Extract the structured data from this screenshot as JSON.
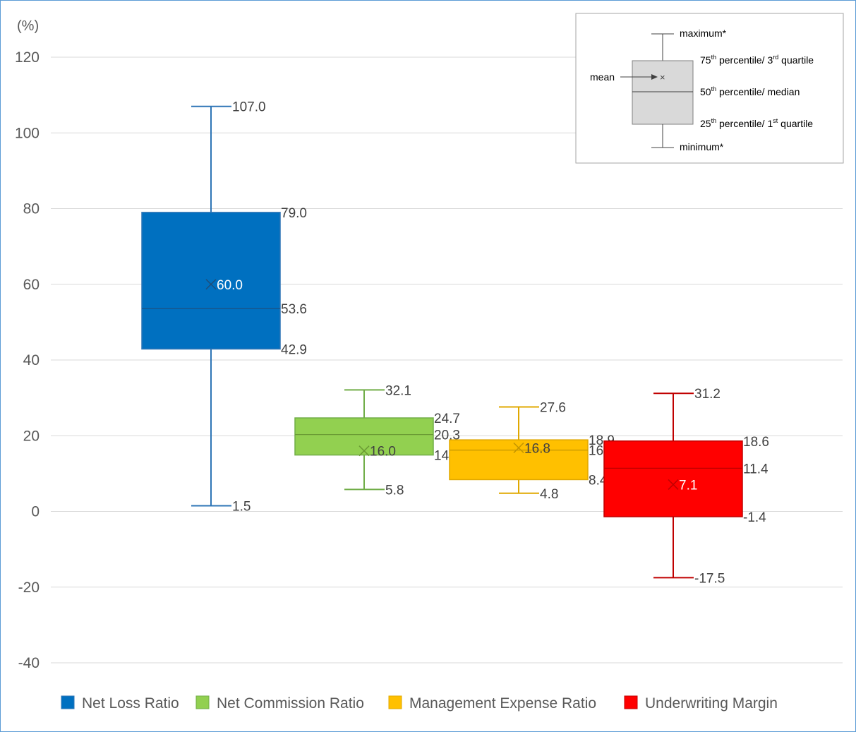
{
  "chart_data": {
    "type": "box",
    "unit_label": "(%)",
    "ylim": [
      -40,
      120
    ],
    "yticks": [
      -40,
      -20,
      0,
      20,
      40,
      60,
      80,
      100,
      120
    ],
    "grid": true,
    "legend_position": "bottom",
    "series": [
      {
        "name": "Net Loss Ratio",
        "color": "#0070c0",
        "min": 1.5,
        "q1": 42.9,
        "median": 53.6,
        "q3": 79.0,
        "max": 107.0,
        "mean": 60.0,
        "labels": {
          "max": "107.0",
          "q3": "79.0",
          "median": "53.6",
          "q1": "42.9",
          "min": "1.5",
          "mean": "60.0"
        }
      },
      {
        "name": "Net Commission Ratio",
        "color": "#92d050",
        "min": 5.8,
        "q1": 14.9,
        "median": 20.3,
        "q3": 24.7,
        "max": 32.1,
        "mean": 16.0,
        "labels": {
          "max": "32.1",
          "q3": "24.7",
          "median": "20.3",
          "q1": "14.9",
          "min": "5.8",
          "mean": "16.0"
        }
      },
      {
        "name": "Management Expense Ratio",
        "color": "#ffc000",
        "min": 4.8,
        "q1": 8.4,
        "median": 16.2,
        "q3": 18.9,
        "max": 27.6,
        "mean": 16.8,
        "labels": {
          "max": "27.6",
          "q3": "18.9",
          "median": "16.2",
          "q1": "8.4",
          "min": "4.8",
          "mean": "16.8"
        }
      },
      {
        "name": "Underwriting Margin",
        "color": "#ff0000",
        "min": -17.5,
        "q1": -1.4,
        "median": 11.4,
        "q3": 18.6,
        "max": 31.2,
        "mean": 7.1,
        "labels": {
          "max": "31.2",
          "q3": "18.6",
          "median": "11.4",
          "q1": "-1.4",
          "min": "-17.5",
          "mean": "7.1"
        }
      }
    ]
  },
  "key": {
    "maximum": "maximum*",
    "q3_prefix": "75",
    "q3_sup": "th",
    "q3_mid": " percentile/ 3",
    "q3_sup2": "rd",
    "q3_suffix": " quartile",
    "median_prefix": "50",
    "median_sup": "th",
    "median_suffix": " percentile/ median",
    "q1_prefix": "25",
    "q1_sup": "th",
    "q1_mid": " percentile/ 1",
    "q1_sup2": "st",
    "q1_suffix": " quartile",
    "minimum": "minimum*",
    "mean": "mean",
    "mean_marker": "×"
  }
}
